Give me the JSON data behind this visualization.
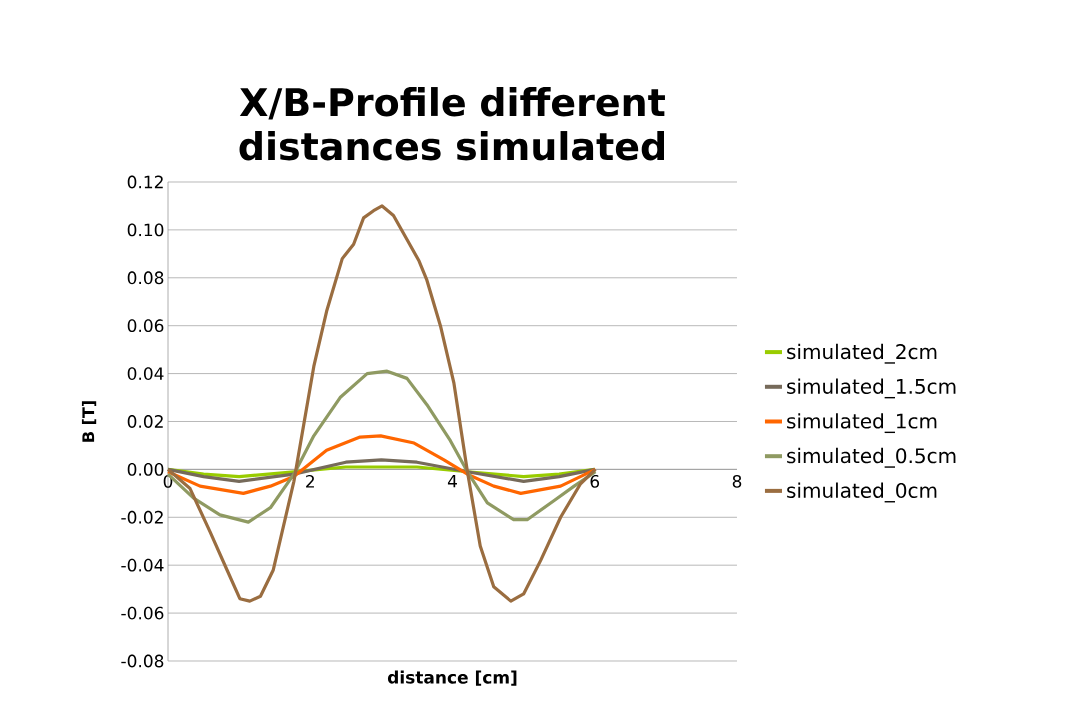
{
  "chart_data": {
    "type": "line",
    "title": "X/B-Profile different distances simulated",
    "xlabel": "distance [cm]",
    "ylabel": "B [T]",
    "xlim": [
      0,
      8
    ],
    "ylim": [
      -0.08,
      0.12
    ],
    "xticks": [
      0,
      2,
      4,
      6,
      8
    ],
    "yticks": [
      {
        "value": 0.12,
        "label": "0.12"
      },
      {
        "value": 0.1,
        "label": "0.10"
      },
      {
        "value": 0.08,
        "label": "0.08"
      },
      {
        "value": 0.06,
        "label": "0.06"
      },
      {
        "value": 0.04,
        "label": "0.04"
      },
      {
        "value": 0.02,
        "label": "0.02"
      },
      {
        "value": 0,
        "label": "0.00"
      },
      {
        "value": -0.02,
        "label": "-0.02"
      },
      {
        "value": -0.04,
        "label": "-0.04"
      },
      {
        "value": -0.06,
        "label": "-0.06"
      },
      {
        "value": -0.08,
        "label": "-0.08"
      }
    ],
    "grid": "y",
    "legend": "right",
    "marker": "none",
    "line_style": "solid",
    "series": [
      {
        "name": "simulated_2cm",
        "color": "#99cc00",
        "x": [
          0,
          0.5,
          1.0,
          1.77,
          2.5,
          3.0,
          3.5,
          4.21,
          5.0,
          5.5,
          6.0
        ],
        "values": [
          0,
          -0.002,
          -0.003,
          -0.001,
          0.001,
          0.001,
          0.001,
          -0.001,
          -0.003,
          -0.002,
          0
        ]
      },
      {
        "name": "simulated_1.5cm",
        "color": "#766a5a",
        "x": [
          0,
          0.5,
          1.0,
          1.77,
          2.5,
          3.0,
          3.5,
          4.21,
          5.0,
          5.5,
          6.0
        ],
        "values": [
          0,
          -0.003,
          -0.005,
          -0.002,
          0.003,
          0.004,
          0.003,
          -0.001,
          -0.005,
          -0.003,
          0
        ]
      },
      {
        "name": "simulated_1cm",
        "color": "#ff6600",
        "x": [
          0,
          0.45,
          1.06,
          1.44,
          1.77,
          2.23,
          2.7,
          2.99,
          3.46,
          3.88,
          4.21,
          4.58,
          4.96,
          5.52,
          6.01
        ],
        "values": [
          -0.001,
          -0.007,
          -0.01,
          -0.007,
          -0.003,
          0.008,
          0.0135,
          0.014,
          0.011,
          0.004,
          -0.002,
          -0.007,
          -0.01,
          -0.007,
          0
        ]
      },
      {
        "name": "simulated_0.5cm",
        "color": "#8f9a62",
        "x": [
          0,
          0.36,
          0.73,
          1.13,
          1.44,
          1.77,
          2.05,
          2.42,
          2.8,
          3.08,
          3.36,
          3.64,
          3.97,
          4.21,
          4.49,
          4.86,
          5.05,
          5.43,
          5.71,
          6.01
        ],
        "values": [
          -0.002,
          -0.012,
          -0.019,
          -0.022,
          -0.016,
          -0.002,
          0.014,
          0.03,
          0.04,
          0.041,
          0.038,
          0.027,
          0.012,
          -0.001,
          -0.014,
          -0.021,
          -0.021,
          -0.013,
          -0.007,
          -0.001
        ]
      },
      {
        "name": "simulated_0cm",
        "color": "#9a6d40",
        "x": [
          0,
          0.31,
          0.59,
          0.83,
          1.01,
          1.15,
          1.3,
          1.48,
          1.77,
          2.05,
          2.23,
          2.45,
          2.61,
          2.75,
          2.89,
          3.01,
          3.17,
          3.36,
          3.53,
          3.64,
          3.83,
          4.02,
          4.21,
          4.39,
          4.58,
          4.82,
          5.0,
          5.24,
          5.52,
          5.8,
          6.01
        ],
        "values": [
          0,
          -0.008,
          -0.026,
          -0.042,
          -0.054,
          -0.055,
          -0.053,
          -0.042,
          -0.005,
          0.043,
          0.066,
          0.088,
          0.094,
          0.105,
          0.108,
          0.11,
          0.106,
          0.096,
          0.087,
          0.079,
          0.06,
          0.036,
          -0.001,
          -0.032,
          -0.049,
          -0.055,
          -0.052,
          -0.038,
          -0.02,
          -0.006,
          0
        ]
      }
    ]
  }
}
